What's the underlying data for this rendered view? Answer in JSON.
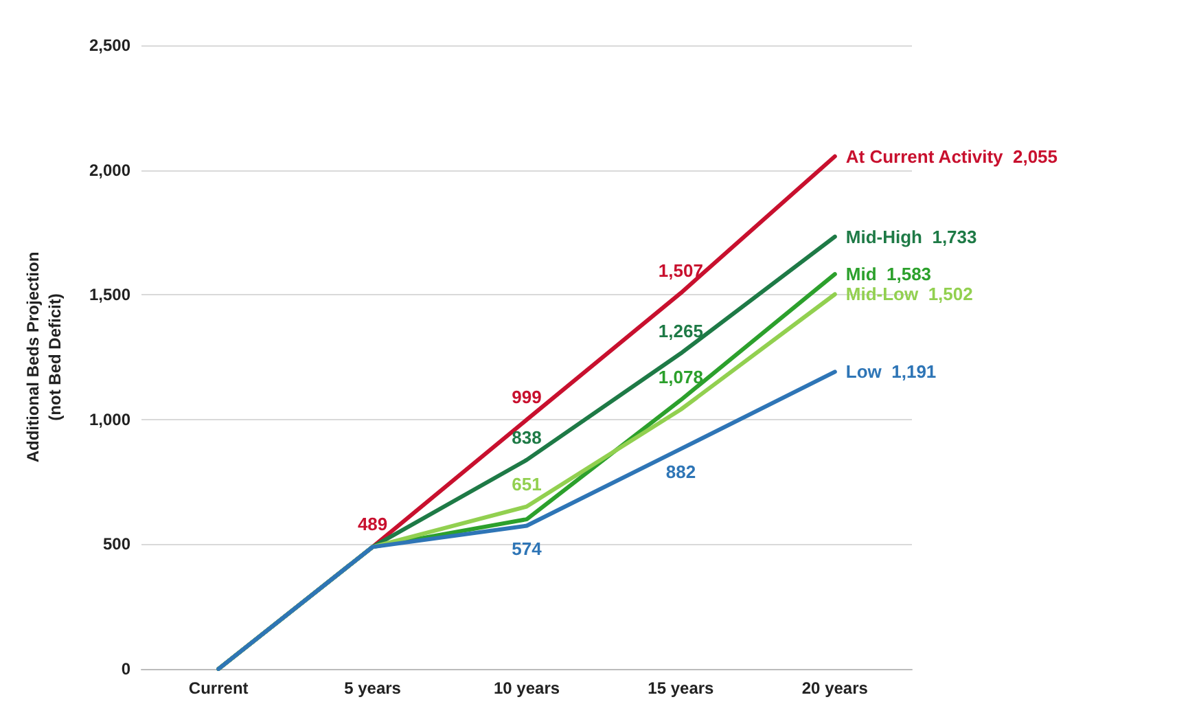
{
  "chart_data": {
    "type": "line",
    "ylabel": "Additional Beds Projection\n(not Bed Deficit)",
    "categories": [
      "Current",
      "5 years",
      "10 years",
      "15 years",
      "20 years"
    ],
    "ylim": [
      0,
      2500
    ],
    "yticks": [
      {
        "value": 0,
        "label": "0"
      },
      {
        "value": 500,
        "label": "500"
      },
      {
        "value": 1000,
        "label": "1,000"
      },
      {
        "value": 1500,
        "label": "1,500"
      },
      {
        "value": 2000,
        "label": "2,000"
      },
      {
        "value": 2500,
        "label": "2,500"
      }
    ],
    "grid": "y",
    "legend": false,
    "marker": "none",
    "line_style": "solid",
    "series": [
      {
        "name": "At Current Activity",
        "color": "#c8102e",
        "values": [
          0,
          489,
          999,
          1507,
          2055
        ],
        "value_labels": [
          null,
          "489",
          "999",
          "1,507",
          "2,055"
        ]
      },
      {
        "name": "Mid-High",
        "color": "#1e7a46",
        "values": [
          0,
          489,
          838,
          1265,
          1733
        ],
        "value_labels": [
          null,
          null,
          "838",
          "1,265",
          "1,733"
        ]
      },
      {
        "name": "Mid",
        "color": "#2ca02c",
        "values": [
          0,
          489,
          600,
          1078,
          1583
        ],
        "value_labels": [
          null,
          null,
          null,
          "1,078",
          "1,583"
        ]
      },
      {
        "name": "Mid-Low",
        "color": "#92d050",
        "values": [
          0,
          489,
          651,
          1040,
          1502
        ],
        "value_labels": [
          null,
          null,
          "651",
          null,
          "1,502"
        ]
      },
      {
        "name": "Low",
        "color": "#2e75b6",
        "values": [
          0,
          489,
          574,
          882,
          1191
        ],
        "value_labels": [
          null,
          null,
          "574",
          "882",
          "1,191"
        ]
      }
    ]
  }
}
